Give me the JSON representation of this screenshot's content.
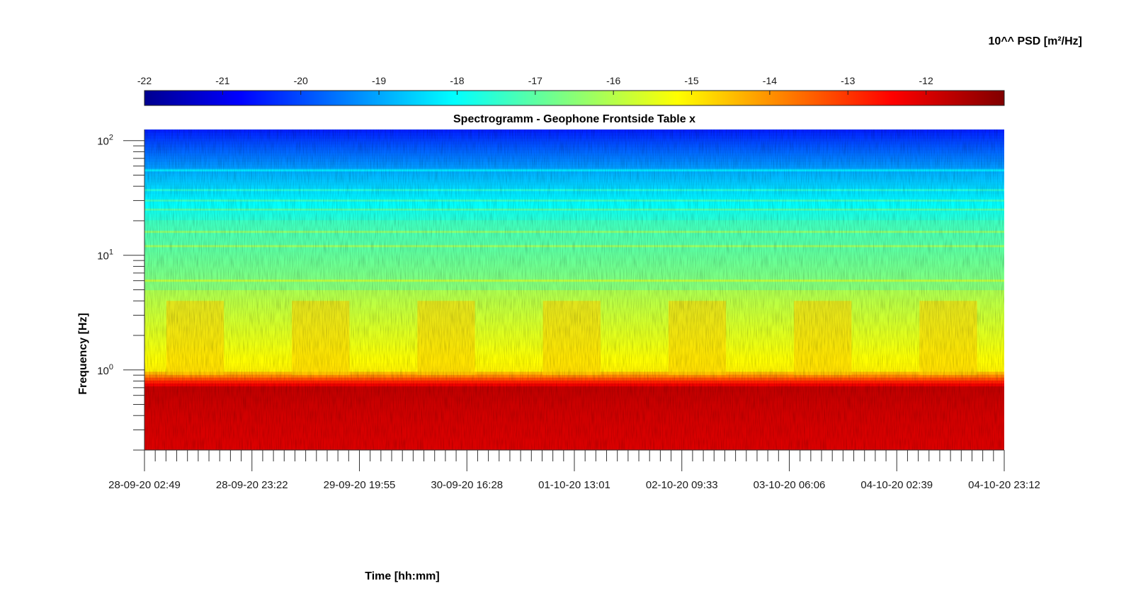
{
  "chart_data": {
    "type": "heatmap",
    "title": "Spectrogramm - Geophone Frontside Table x",
    "xlabel": "Time [hh:mm]",
    "ylabel": "Frequency [Hz]",
    "colorbar_label": "10^^ PSD [m²/Hz]",
    "colormap": "jet",
    "color_range": [
      -22,
      -11
    ],
    "colorbar_ticks": [
      -22,
      -21,
      -20,
      -19,
      -18,
      -17,
      -16,
      -15,
      -14,
      -13,
      -12
    ],
    "colorbar_tick_labels": [
      "-22",
      "-21",
      "-20",
      "-19",
      "-18",
      "-17",
      "-16",
      "-15",
      "-14",
      "-13",
      "-12"
    ],
    "y_scale": "log",
    "ylim": [
      0.2,
      125
    ],
    "y_ticks": [
      {
        "base": "10",
        "exp": "2",
        "value": 100
      },
      {
        "base": "10",
        "exp": "1",
        "value": 10
      },
      {
        "base": "10",
        "exp": "0",
        "value": 1
      }
    ],
    "xlim": [
      "28-09-20 02:49",
      "04-10-20 23:12"
    ],
    "x_tick_labels": [
      "28-09-20 02:49",
      "28-09-20 23:22",
      "29-09-20 19:55",
      "30-09-20 16:28",
      "01-10-20 13:01",
      "02-10-20 09:33",
      "03-10-20 06:06",
      "04-10-20 02:39",
      "04-10-20 23:12"
    ],
    "features": {
      "low_frequency_band_hz": [
        0.2,
        0.7
      ],
      "daily_activity_band_hz": [
        0.9,
        4.0
      ],
      "persistent_lines_hz": [
        6,
        12,
        16,
        25,
        30,
        37,
        55
      ]
    }
  }
}
